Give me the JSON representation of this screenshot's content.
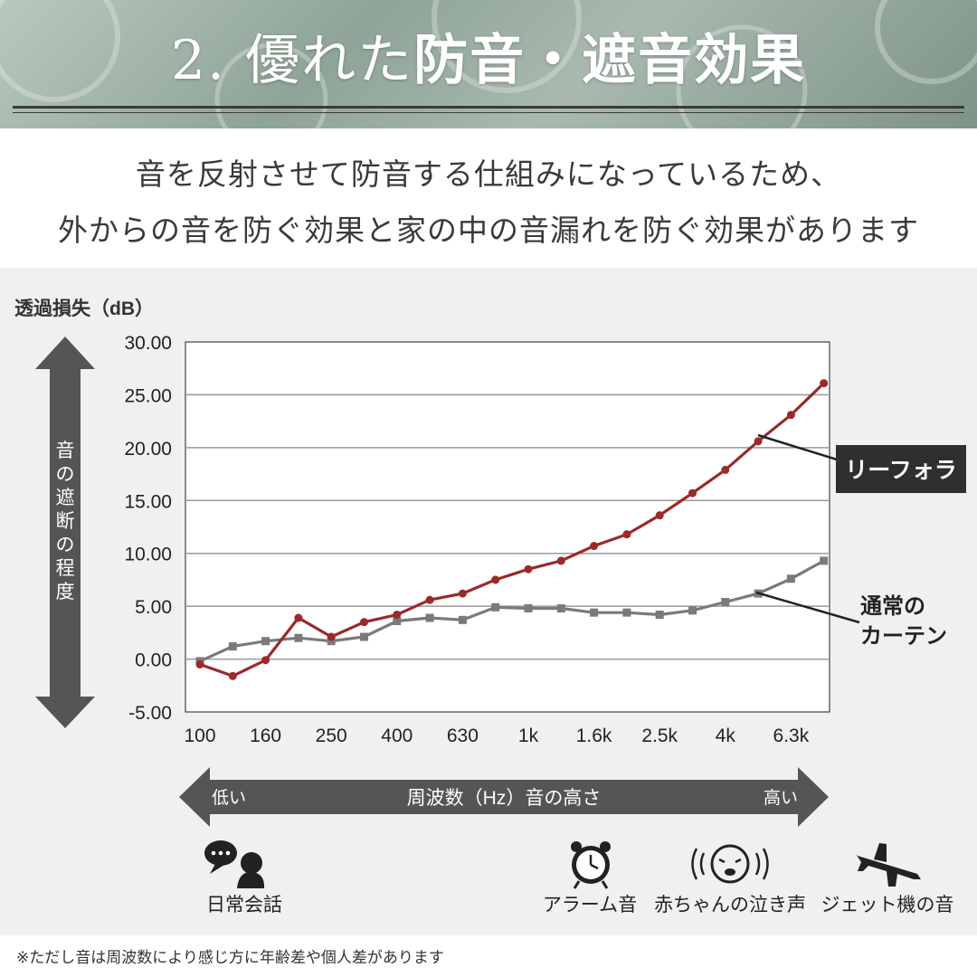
{
  "header": {
    "title_num": "2.",
    "title_light": "優れた",
    "title_bold": "防音・遮音効果"
  },
  "subtitle": {
    "line1": "音を反射させて防音する仕組みになっているため、",
    "line2": "外からの音を防ぐ効果と家の中の音漏れを防ぐ効果があります"
  },
  "y_axis_title": "透過損失（dB）",
  "vertical_arrow_label": "音の遮断の程度",
  "horizontal_arrow": {
    "label": "周波数（Hz）音の高さ",
    "low": "低い",
    "high": "高い"
  },
  "chart_data": {
    "type": "line",
    "ylim": [
      -5,
      30
    ],
    "yticks": [
      "30.00",
      "25.00",
      "20.00",
      "15.00",
      "10.00",
      "5.00",
      "0.00",
      "-5.00"
    ],
    "x_tick_labels": [
      "100",
      "160",
      "250",
      "400",
      "630",
      "1k",
      "1.6k",
      "2.5k",
      "4k",
      "6.3k"
    ],
    "x_ticks_at": [
      100,
      160,
      250,
      400,
      630,
      1000,
      1600,
      2500,
      4000,
      6300
    ],
    "x": [
      100,
      125,
      160,
      200,
      250,
      315,
      400,
      500,
      630,
      800,
      1000,
      1250,
      1600,
      2000,
      2500,
      3150,
      4000,
      5000,
      6300,
      8000
    ],
    "grid": true,
    "series": [
      {
        "name": "リーフォラ",
        "color": "#9b2a2a",
        "marker": "circle",
        "values": [
          -0.5,
          -1.6,
          -0.1,
          3.9,
          2.1,
          3.5,
          4.2,
          5.6,
          6.2,
          7.5,
          8.5,
          9.3,
          10.7,
          11.8,
          13.6,
          15.7,
          17.9,
          20.6,
          23.1,
          26.1
        ]
      },
      {
        "name_line1": "通常の",
        "name_line2": "カーテン",
        "color": "#7a7a7a",
        "marker": "square",
        "values": [
          -0.2,
          1.2,
          1.7,
          2.0,
          1.7,
          2.1,
          3.6,
          3.9,
          3.7,
          4.9,
          4.8,
          4.8,
          4.4,
          4.4,
          4.2,
          4.6,
          5.4,
          6.2,
          7.6,
          9.3
        ]
      }
    ]
  },
  "icons": {
    "conversation": {
      "label": "日常会話",
      "icon": "speech-bubble-person-icon"
    },
    "alarm": {
      "label": "アラーム音",
      "icon": "alarm-clock-icon"
    },
    "baby": {
      "label": "赤ちゃんの泣き声",
      "icon": "crying-baby-icon"
    },
    "jet": {
      "label": "ジェット機の音",
      "icon": "airplane-icon"
    }
  },
  "footnote": "※ただし音は周波数により感じ方に年齢差や個人差があります"
}
